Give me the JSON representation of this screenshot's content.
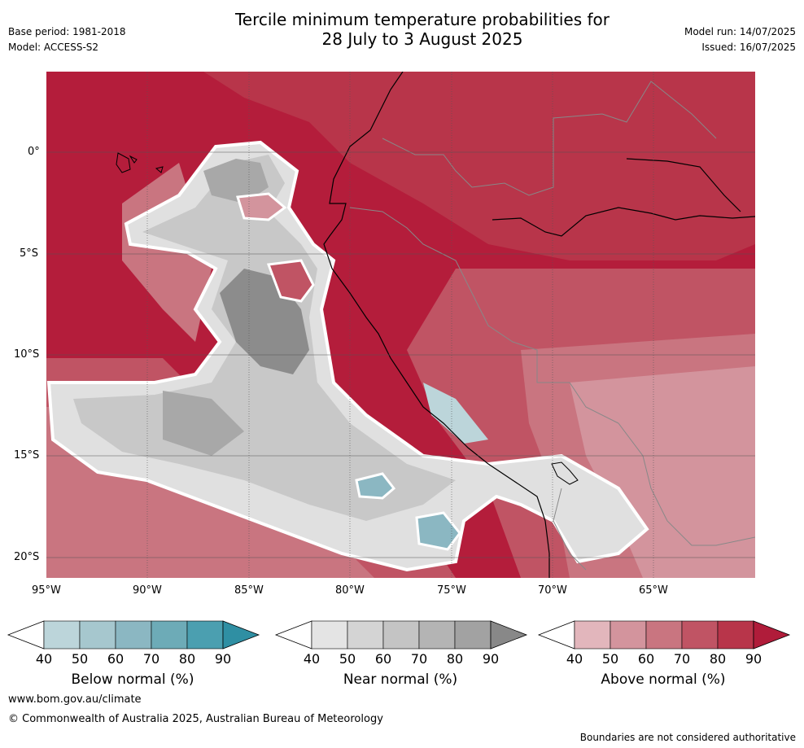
{
  "title_line1": "Tercile minimum temperature probabilities for",
  "title_line2": "28 July to 3 August 2025",
  "base_period": "Base period: 1981-2018",
  "model": "Model: ACCESS-S2",
  "model_run": "Model run: 14/07/2025",
  "issued": "Issued: 16/07/2025",
  "lat_labels": [
    "0°",
    "5°S",
    "10°S",
    "15°S",
    "20°S"
  ],
  "lon_labels": [
    "95°W",
    "90°W",
    "85°W",
    "80°W",
    "75°W",
    "70°W",
    "65°W"
  ],
  "colorbars": [
    {
      "label": "Below normal (%)",
      "ticks": [
        "40",
        "50",
        "60",
        "70",
        "80",
        "90"
      ],
      "colors": [
        "#bcd5da",
        "#a6c7ce",
        "#8bb7c2",
        "#6dabb7",
        "#4b9fb0",
        "#2f8fa3"
      ]
    },
    {
      "label": "Near normal (%)",
      "ticks": [
        "40",
        "50",
        "60",
        "70",
        "80",
        "90"
      ],
      "colors": [
        "#e4e4e4",
        "#d4d4d4",
        "#c4c4c4",
        "#b4b4b4",
        "#a2a2a2",
        "#888888"
      ]
    },
    {
      "label": "Above normal (%)",
      "ticks": [
        "40",
        "50",
        "60",
        "70",
        "80",
        "90"
      ],
      "colors": [
        "#e2b6bc",
        "#d3949d",
        "#c97580",
        "#c05464",
        "#b8354a",
        "#b01c3a"
      ]
    }
  ],
  "footer_url": "www.bom.gov.au/climate",
  "footer_copyright": "© Commonwealth of Australia 2025, Australian Bureau of Meteorology",
  "footer_note": "Boundaries are not considered authoritative"
}
